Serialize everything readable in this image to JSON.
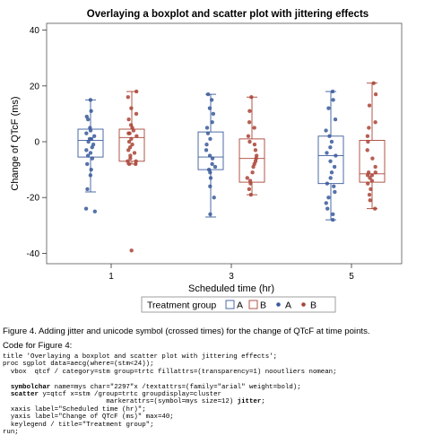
{
  "chart_data": {
    "type": "boxplot-scatter",
    "title": "Overlaying a boxplot and scatter plot with jittering effects",
    "xlabel": "Scheduled time (hr)",
    "ylabel": "Change of QTcF (ms)",
    "ylim": [
      -45,
      45
    ],
    "yticks": [
      -40,
      -20,
      0,
      20,
      40
    ],
    "categories": [
      "1",
      "3",
      "5"
    ],
    "legend": {
      "title": "Treatment group",
      "entries": [
        "A",
        "B",
        "A",
        "B"
      ],
      "placement": "bottom"
    },
    "colors": {
      "A": "#3a5b9a",
      "B": "#a94436"
    },
    "boxes": [
      {
        "time": "1",
        "group": "A",
        "min": -18,
        "q1": -5.5,
        "median": 0.5,
        "q3": 4.5,
        "max": 15
      },
      {
        "time": "1",
        "group": "B",
        "min": -8,
        "q1": -7,
        "median": 1.5,
        "q3": 4.5,
        "max": 18
      },
      {
        "time": "3",
        "group": "A",
        "min": -27,
        "q1": -10,
        "median": -5.5,
        "q3": 3.5,
        "max": 17
      },
      {
        "time": "3",
        "group": "B",
        "min": -19,
        "q1": -14.5,
        "median": -6,
        "q3": 1,
        "max": 16
      },
      {
        "time": "5",
        "group": "A",
        "min": -28,
        "q1": -15,
        "median": -5,
        "q3": 2,
        "max": 18
      },
      {
        "time": "5",
        "group": "B",
        "min": -24,
        "q1": -14.5,
        "median": -11.5,
        "q3": 0.5,
        "max": 21
      }
    ],
    "series": [
      {
        "name": "A",
        "time": "1",
        "values": [
          15,
          11,
          9,
          8,
          5,
          4,
          3,
          2,
          1,
          1,
          0,
          -1,
          -2,
          -3,
          -4,
          -5,
          -6,
          -8,
          -10,
          -12,
          -17,
          -24,
          -25
        ]
      },
      {
        "name": "B",
        "time": "1",
        "values": [
          18,
          16,
          12,
          10,
          8,
          6,
          5,
          4,
          3,
          3,
          2,
          1,
          0,
          -1,
          -2,
          -3,
          -4,
          -5,
          -6,
          -7,
          -7,
          -8,
          -8,
          -39
        ]
      },
      {
        "name": "A",
        "time": "3",
        "values": [
          17,
          15,
          12,
          10,
          7,
          5,
          3,
          1,
          -1,
          -3,
          -5,
          -6,
          -8,
          -9,
          -10,
          -11,
          -13,
          -16,
          -20,
          -26
        ]
      },
      {
        "name": "B",
        "time": "3",
        "values": [
          16,
          11,
          7,
          5,
          2,
          0,
          -1,
          -3,
          -5,
          -6,
          -7,
          -8,
          -9,
          -11,
          -13,
          -14,
          -15,
          -17,
          -19
        ]
      },
      {
        "name": "A",
        "time": "5",
        "values": [
          18,
          15,
          12,
          8,
          4,
          2,
          0,
          -2,
          -4,
          -5,
          -7,
          -9,
          -11,
          -13,
          -15,
          -16,
          -18,
          -20,
          -22,
          -24,
          -26,
          -28
        ]
      },
      {
        "name": "B",
        "time": "5",
        "values": [
          21,
          17,
          13,
          7,
          5,
          2,
          0,
          -3,
          -6,
          -9,
          -11,
          -11,
          -12,
          -12,
          -13,
          -14,
          -15,
          -17,
          -19,
          -21,
          -24
        ]
      }
    ]
  },
  "caption": "Figure 4.  Adding jitter and unicode symbol (crossed times) for the change of QTcF at time points.",
  "code_heading": "Code for Figure 4:",
  "code_lines": [
    "title 'Overlaying a boxplot and scatter plot with jittering effects';",
    "proc sgplot data=aecg(where=(stm<24));",
    "  vbox  qtcf / category=stm group=trtc fillattrs=(transparency=1) nooutliers nomean;",
    "",
    "  symbolchar name=mys char=\"2297\"x /textattrs=(family=\"arial\" weight=bold);",
    "  scatter y=qtcf x=stm /group=trtc groupdisplay=cluster",
    "                          markerattrs=(symbol=mys size=12) jitter;",
    "  xaxis label=\"Scheduled time (hr)\";",
    "  yaxis label=\"Change of QTcF (ms)\" max=40;",
    "  keylegend / title=\"Treatment group\";",
    "run;"
  ]
}
